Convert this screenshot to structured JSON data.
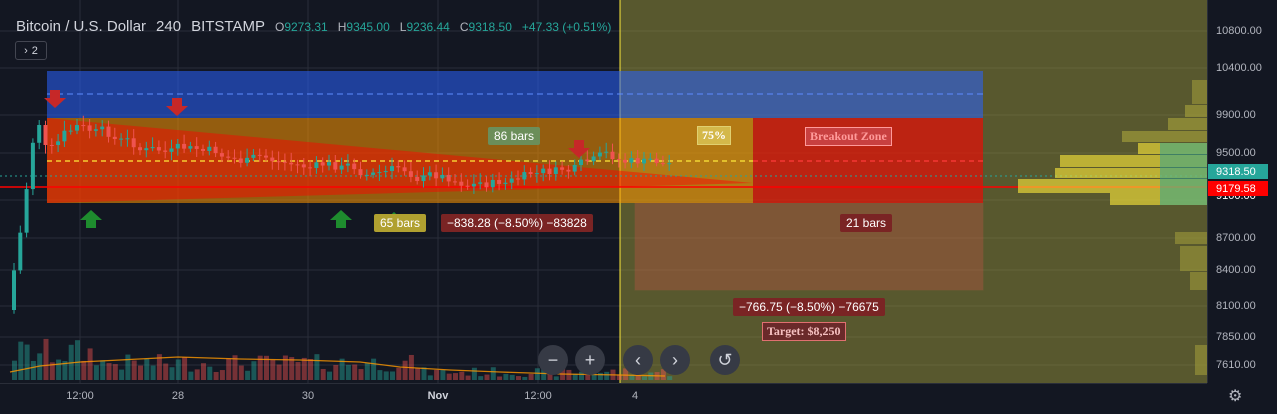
{
  "symbol": {
    "name": "Bitcoin / U.S. Dollar",
    "interval": "240",
    "exchange": "BITSTAMP",
    "open_label": "O",
    "open": "9273.31",
    "high_label": "H",
    "high": "9345.00",
    "low_label": "L",
    "low": "9236.44",
    "close_label": "C",
    "close": "9318.50",
    "change": "+47.33 (+0.51%)"
  },
  "collapse_count": "2",
  "price_axis": {
    "ticks": [
      "10800.00",
      "10400.00",
      "9900.00",
      "9500.00",
      "8700.00",
      "8400.00",
      "8100.00",
      "7850.00",
      "7610.00"
    ],
    "current_price": "9318.50",
    "current_price_color": "#26a69a",
    "line_price": "9179.58",
    "line_price_color": "#ff0000",
    "partial_tick": "9100.00"
  },
  "time_axis": {
    "labels": [
      "12:00",
      "28",
      "30",
      "Nov",
      "12:00",
      "4"
    ],
    "bold_label": "Nov"
  },
  "annotations": {
    "bars_86": "86 bars",
    "percent_75": "75%",
    "breakout_zone": "Breakout Zone",
    "bars_65": "65 bars",
    "range_1": "−838.28 (−8.50%) −83828",
    "bars_21": "21 bars",
    "range_2": "−766.75 (−8.50%) −76675",
    "target": "Target: $8,250"
  },
  "controls": {
    "zoom_out": "−",
    "zoom_in": "+",
    "scroll_left": "‹",
    "scroll_right": "›",
    "reset": "↺",
    "settings": "⚙"
  },
  "colors": {
    "background": "#131722",
    "bull": "#26a69a",
    "bear": "#ef5350",
    "blue_zone": "#2962ff",
    "orange_zone": "#ff9800",
    "red_zone": "#ff0000",
    "forecast_bg": "#9e9a3a"
  }
}
